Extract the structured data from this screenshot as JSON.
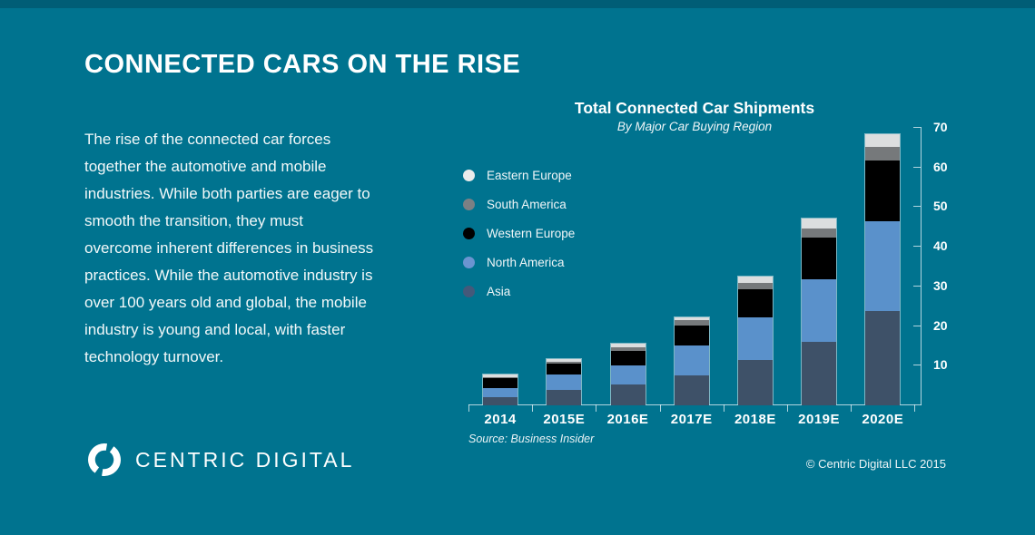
{
  "header": {
    "title": "CONNECTED CARS ON THE RISE"
  },
  "intro": {
    "text": "The rise of the connected car forces together the automotive and mobile industries.  While both parties are eager to smooth the transition, they must overcome inherent differences in business practices.  While the automotive industry is over 100 years old and global, the mobile industry is young and local, with faster technology turnover."
  },
  "chart": {
    "title": "Total Connected Car Shipments",
    "subtitle": "By Major Car Buying Region",
    "source": "Source: Business Insider"
  },
  "chart_data": {
    "type": "bar",
    "stacked": true,
    "title": "Total Connected Car Shipments",
    "subtitle": "By Major Car Buying Region",
    "categories": [
      "2014",
      "2015E",
      "2016E",
      "2017E",
      "2018E",
      "2019E",
      "2020E"
    ],
    "series": [
      {
        "name": "Asia",
        "color": "#3e5168",
        "values": [
          2.0,
          3.8,
          5.2,
          7.6,
          11.3,
          16.0,
          23.9
        ]
      },
      {
        "name": "North America",
        "color": "#5a91cb",
        "values": [
          2.3,
          4.0,
          4.9,
          7.4,
          10.9,
          15.8,
          22.5
        ]
      },
      {
        "name": "Western Europe",
        "color": "#000000",
        "values": [
          2.5,
          2.7,
          3.6,
          5.2,
          7.0,
          10.5,
          15.3
        ]
      },
      {
        "name": "South America",
        "color": "#76797b",
        "values": [
          0.4,
          0.6,
          1.0,
          1.2,
          1.7,
          2.3,
          3.6
        ]
      },
      {
        "name": "Eastern Europe",
        "color": "#dcdedf",
        "values": [
          0.5,
          0.6,
          0.9,
          0.9,
          1.7,
          2.6,
          3.2
        ]
      }
    ],
    "legend": [
      {
        "label": "Eastern Europe",
        "color": "#e9ebeb"
      },
      {
        "label": "South America",
        "color": "#7b8084"
      },
      {
        "label": "Western Europe",
        "color": "#000000"
      },
      {
        "label": "North America",
        "color": "#6b94d0"
      },
      {
        "label": "Asia",
        "color": "#44597a"
      }
    ],
    "y_ticks": [
      10,
      20,
      30,
      40,
      50,
      60,
      70
    ],
    "ylim": [
      0,
      70
    ],
    "grid": false,
    "legend_position": "left",
    "value_axis_side": "right"
  },
  "footer": {
    "brand": "CENTRIC DIGITAL",
    "copyright": "© Centric Digital LLC 2015"
  },
  "colors": {
    "background": "#00738f",
    "top_band": "#005d76",
    "axis": "#ecf6f9",
    "text": "#ffffff"
  }
}
